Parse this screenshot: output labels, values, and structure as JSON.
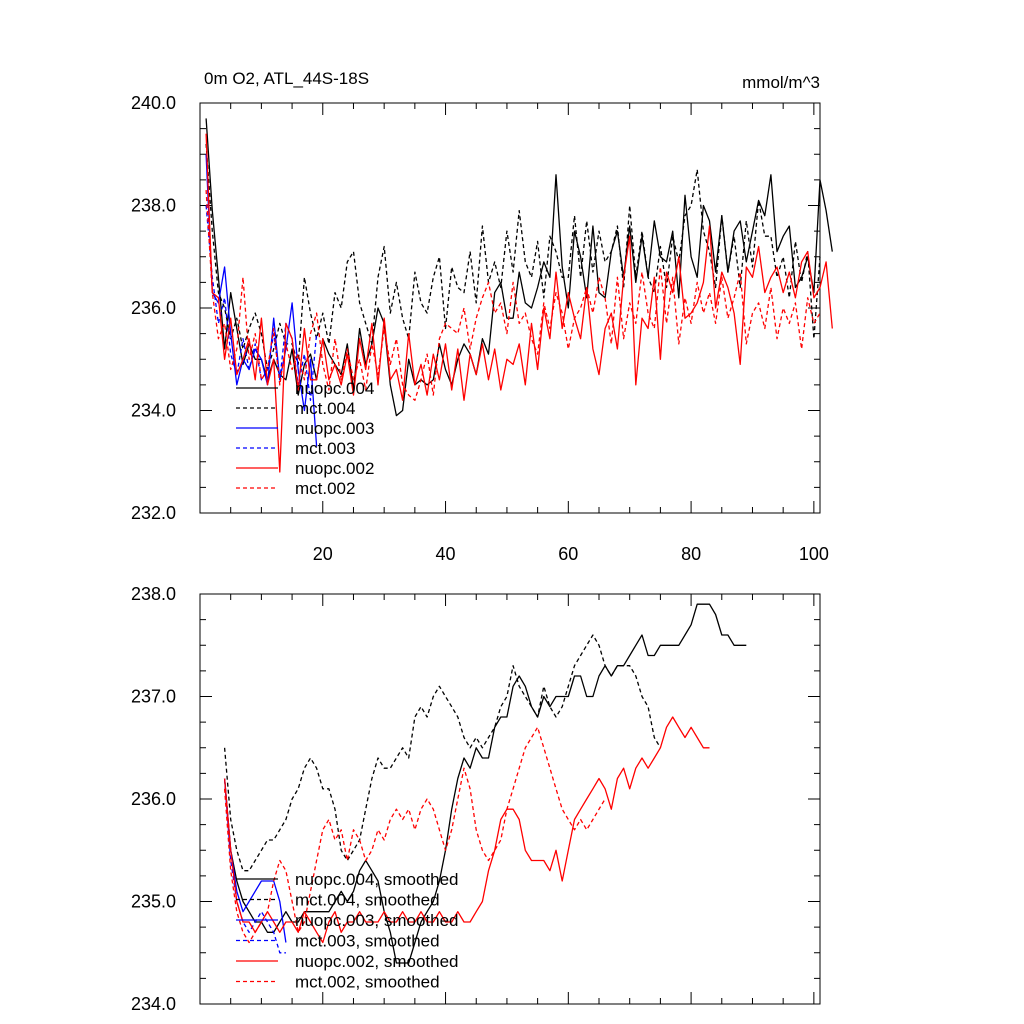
{
  "colors": {
    "black": "#000000",
    "blue": "#0000ff",
    "red": "#ff0000"
  },
  "chart_data": [
    {
      "type": "line",
      "title": "0m O2, ATL_44S-18S",
      "units": "mmol/m^3",
      "xlim": [
        0,
        101
      ],
      "ylim": [
        232,
        240
      ],
      "xticks": [
        20,
        40,
        60,
        80,
        100
      ],
      "xtick_labels": [
        "20",
        "40",
        "60",
        "80",
        "100"
      ],
      "yticks": [
        232,
        234,
        236,
        238,
        240
      ],
      "ytick_labels": [
        "232.0",
        "234.0",
        "236.0",
        "238.0",
        "240.0"
      ],
      "legend_position": "lower-left",
      "series": [
        {
          "name": "nuopc.004",
          "color": "black",
          "dash": "solid",
          "x_start": 1,
          "values": [
            239.7,
            237.9,
            236.6,
            235.2,
            236.3,
            235.6,
            234.9,
            235.3,
            235.0,
            235.0,
            234.6,
            235.0,
            234.7,
            234.6,
            235.2,
            234.3,
            234.9,
            235.1,
            234.6,
            235.4,
            235.1,
            234.9,
            234.7,
            235.3,
            234.4,
            235.6,
            234.9,
            235.3,
            236.0,
            235.7,
            234.5,
            233.9,
            234.0,
            235.0,
            234.5,
            234.6,
            234.5,
            234.6,
            235.3,
            234.8,
            234.5,
            235.0,
            235.3,
            235.1,
            234.7,
            235.4,
            235.1,
            236.3,
            236.5,
            235.8,
            235.8,
            236.7,
            236.1,
            236.0,
            236.4,
            236.9,
            236.6,
            238.6,
            236.8,
            236.0,
            237.5,
            237.0,
            236.2,
            237.6,
            236.3,
            236.2,
            237.1,
            237.5,
            236.6,
            237.6,
            236.5,
            237.4,
            236.6,
            237.7,
            237.0,
            236.9,
            237.5,
            236.2,
            238.2,
            237.0,
            236.6,
            238.0,
            237.7,
            236.7,
            237.8,
            236.7,
            237.5,
            237.7,
            236.9,
            237.5,
            238.1,
            237.8,
            238.6,
            237.1,
            237.4,
            237.6,
            236.4,
            236.6,
            237.0,
            236.3,
            238.5,
            237.9,
            237.1
          ]
        },
        {
          "name": "mct.004",
          "color": "black",
          "dash": "dashed",
          "x_start": 1,
          "values": [
            239.2,
            237.5,
            236.3,
            236.0,
            235.4,
            235.8,
            235.2,
            235.6,
            235.9,
            235.5,
            234.8,
            235.2,
            235.7,
            235.3,
            235.3,
            234.9,
            236.6,
            235.9,
            235.4,
            235.9,
            235.3,
            236.3,
            236.0,
            236.9,
            237.1,
            236.1,
            235.7,
            235.3,
            236.6,
            237.2,
            235.9,
            236.5,
            235.8,
            235.4,
            236.7,
            236.1,
            235.9,
            236.6,
            237.0,
            235.6,
            236.8,
            236.4,
            236.3,
            237.1,
            236.1,
            237.6,
            236.5,
            236.9,
            236.4,
            237.5,
            236.7,
            237.9,
            236.9,
            236.6,
            237.3,
            236.2,
            237.4,
            237.1,
            236.6,
            236.6,
            237.8,
            236.6,
            237.7,
            236.7,
            237.5,
            236.9,
            237.1,
            237.6,
            236.4,
            238.0,
            236.6,
            237.5,
            236.6,
            236.3,
            237.2,
            236.4,
            237.4,
            236.9,
            237.8,
            238.0,
            238.7,
            237.5,
            237.1,
            236.4,
            237.8,
            236.7,
            237.4,
            236.4,
            237.7,
            236.8,
            238.1,
            237.4,
            237.4,
            236.6,
            237.0,
            236.2,
            237.3,
            236.5,
            237.1,
            235.4,
            237.0
          ]
        },
        {
          "name": "nuopc.003",
          "color": "blue",
          "dash": "solid",
          "x_start": 1,
          "values": [
            239.0,
            236.3,
            236.1,
            236.8,
            235.5,
            234.5,
            235.0,
            234.8,
            235.2,
            235.0,
            234.5,
            235.8,
            234.6,
            235.2,
            236.1,
            234.8,
            234.0,
            235.0,
            233.3
          ]
        },
        {
          "name": "mct.003",
          "color": "blue",
          "dash": "dashed",
          "x_start": 1,
          "values": [
            238.0,
            236.6,
            235.7,
            236.2,
            235.1,
            234.7,
            235.4,
            234.8,
            235.3,
            234.6,
            234.8,
            235.5,
            234.6,
            235.7,
            235.4,
            234.5,
            235.1,
            234.2,
            235.5
          ]
        },
        {
          "name": "nuopc.002",
          "color": "red",
          "dash": "solid",
          "x_start": 1,
          "values": [
            239.4,
            236.3,
            236.2,
            235.0,
            235.8,
            234.7,
            235.0,
            235.4,
            234.6,
            235.8,
            234.5,
            235.0,
            232.8,
            235.7,
            235.4,
            234.4,
            235.6,
            234.6,
            234.6,
            235.4,
            234.6,
            234.9,
            234.5,
            235.1,
            234.3,
            235.4,
            234.8,
            235.7,
            234.5,
            235.8,
            234.6,
            234.8,
            234.2,
            235.5,
            234.5,
            234.9,
            234.3,
            235.1,
            234.6,
            235.3,
            234.4,
            235.2,
            234.2,
            235.1,
            234.7,
            235.3,
            234.6,
            235.2,
            234.4,
            235.0,
            234.9,
            235.3,
            234.5,
            235.7,
            234.8,
            236.0,
            235.4,
            236.7,
            235.6,
            236.3,
            235.8,
            235.4,
            236.4,
            235.2,
            234.7,
            235.6,
            235.9,
            235.2,
            236.6,
            237.4,
            234.5,
            235.8,
            235.6,
            236.6,
            235.0,
            236.7,
            236.3,
            237.0,
            235.8,
            235.9,
            236.1,
            236.5,
            237.6,
            236.0,
            236.7,
            236.4,
            235.9,
            234.9,
            236.8,
            236.6,
            237.2,
            236.3,
            236.6,
            236.8,
            236.3,
            236.7,
            236.2,
            236.9,
            237.1,
            236.2,
            236.4,
            236.9,
            235.6
          ]
        },
        {
          "name": "mct.002",
          "color": "red",
          "dash": "dashed",
          "x_start": 1,
          "values": [
            238.3,
            236.3,
            235.4,
            235.7,
            234.8,
            235.2,
            236.6,
            235.0,
            235.5,
            234.6,
            234.8,
            235.6,
            234.5,
            235.3,
            234.8,
            235.1,
            234.6,
            235.5,
            235.9,
            234.9,
            234.4,
            235.4,
            234.6,
            235.2,
            234.6,
            235.0,
            234.4,
            235.3,
            234.7,
            235.6,
            234.9,
            235.4,
            234.5,
            234.3,
            234.2,
            234.6,
            235.1,
            234.3,
            235.4,
            235.7,
            235.6,
            235.5,
            236.0,
            235.2,
            235.8,
            236.2,
            236.5,
            235.9,
            236.1,
            235.5,
            236.5,
            235.7,
            235.9,
            235.4,
            235.1,
            236.1,
            235.6,
            236.3,
            235.9,
            235.2,
            235.8,
            236.0,
            236.4,
            235.9,
            236.6,
            236.2,
            235.3,
            236.6,
            235.4,
            236.1,
            235.7,
            236.7,
            235.9,
            235.6,
            236.8,
            235.7,
            236.6,
            235.3,
            236.2,
            235.7,
            236.5,
            235.9,
            236.3,
            235.7,
            236.6,
            235.8,
            236.2,
            236.7,
            235.3,
            235.9,
            236.1,
            235.6,
            236.4,
            235.4,
            236.0,
            235.7,
            236.1,
            235.2,
            236.2,
            235.7,
            235.9
          ]
        }
      ]
    },
    {
      "type": "line",
      "xlim": [
        0,
        101
      ],
      "ylim": [
        234,
        238
      ],
      "xticks": [
        20,
        40,
        60,
        80,
        100
      ],
      "yticks": [
        234,
        235,
        236,
        237,
        238
      ],
      "ytick_labels": [
        "234.0",
        "235.0",
        "236.0",
        "237.0",
        "238.0"
      ],
      "legend_position": "lower-left",
      "series": [
        {
          "name": "nuopc.004, smoothed",
          "color": "black",
          "dash": "solid",
          "x_start": 4,
          "values": [
            236.2,
            235.5,
            235.2,
            235.0,
            234.9,
            234.8,
            234.8,
            234.7,
            234.7,
            234.8,
            234.9,
            234.8,
            234.8,
            234.9,
            234.9,
            234.9,
            234.9,
            234.9,
            235.0,
            235.1,
            235.0,
            235.1,
            235.3,
            235.4,
            235.3,
            235.2,
            234.9,
            234.7,
            234.4,
            234.4,
            234.4,
            234.6,
            234.8,
            234.9,
            235.0,
            235.2,
            235.5,
            235.9,
            236.2,
            236.4,
            236.3,
            236.5,
            236.4,
            236.4,
            236.7,
            236.8,
            236.8,
            237.1,
            237.2,
            237.1,
            236.9,
            236.8,
            237.0,
            236.9,
            237.0,
            237.0,
            237.0,
            237.2,
            237.2,
            237.0,
            237.0,
            237.2,
            237.3,
            237.2,
            237.3,
            237.3,
            237.4,
            237.5,
            237.6,
            237.4,
            237.4,
            237.5,
            237.5,
            237.5,
            237.5,
            237.6,
            237.7,
            237.9,
            237.9,
            237.9,
            237.8,
            237.6,
            237.6,
            237.5,
            237.5,
            237.5
          ]
        },
        {
          "name": "mct.004, smoothed",
          "color": "black",
          "dash": "dashed",
          "x_start": 4,
          "values": [
            236.5,
            235.8,
            235.5,
            235.3,
            235.3,
            235.4,
            235.5,
            235.6,
            235.6,
            235.7,
            235.8,
            236.0,
            236.1,
            236.3,
            236.4,
            236.3,
            236.1,
            236.1,
            235.9,
            235.5,
            235.4,
            235.5,
            235.6,
            235.9,
            236.2,
            236.4,
            236.3,
            236.3,
            236.4,
            236.5,
            236.4,
            236.8,
            236.9,
            236.8,
            237.0,
            237.1,
            237.0,
            236.9,
            236.8,
            236.6,
            236.5,
            236.6,
            236.5,
            236.6,
            236.7,
            236.9,
            237.0,
            237.3,
            237.1,
            237.0,
            236.9,
            236.8,
            237.1,
            236.9,
            236.8,
            236.9,
            237.1,
            237.3,
            237.4,
            237.5,
            237.6,
            237.5,
            237.3,
            237.2,
            237.3,
            237.3,
            237.3,
            237.2,
            237.0,
            236.9,
            236.6,
            236.5
          ]
        },
        {
          "name": "nuopc.003, smoothed",
          "color": "blue",
          "dash": "solid",
          "x_start": 4,
          "values": [
            236.2,
            235.5,
            235.1,
            234.9,
            235.0,
            235.1,
            235.2,
            235.2,
            235.2,
            235.0,
            234.6
          ]
        },
        {
          "name": "mct.003, smoothed",
          "color": "blue",
          "dash": "dashed",
          "x_start": 4,
          "values": [
            236.2,
            235.4,
            235.0,
            234.8,
            234.7,
            234.8,
            234.9,
            234.8,
            234.7,
            234.5,
            234.5
          ]
        },
        {
          "name": "nuopc.002, smoothed",
          "color": "red",
          "dash": "solid",
          "x_start": 4,
          "values": [
            236.2,
            235.5,
            235.0,
            234.8,
            234.8,
            234.7,
            234.8,
            234.9,
            234.8,
            234.7,
            234.8,
            234.8,
            234.7,
            234.9,
            234.8,
            234.7,
            234.6,
            234.8,
            234.9,
            234.7,
            234.8,
            234.8,
            234.9,
            234.8,
            234.8,
            234.8,
            234.9,
            234.8,
            234.8,
            234.9,
            234.8,
            234.8,
            234.9,
            234.8,
            234.8,
            234.9,
            234.8,
            234.8,
            234.9,
            234.8,
            234.8,
            234.9,
            235.0,
            235.3,
            235.5,
            235.8,
            235.9,
            235.9,
            235.8,
            235.5,
            235.4,
            235.4,
            235.4,
            235.3,
            235.5,
            235.2,
            235.5,
            235.8,
            235.9,
            236.0,
            236.1,
            236.2,
            236.1,
            235.9,
            236.2,
            236.3,
            236.1,
            236.3,
            236.4,
            236.3,
            236.4,
            236.5,
            236.7,
            236.8,
            236.7,
            236.6,
            236.7,
            236.6,
            236.5,
            236.5
          ]
        },
        {
          "name": "mct.002, smoothed",
          "color": "red",
          "dash": "dashed",
          "x_start": 4,
          "values": [
            236.1,
            235.3,
            234.9,
            234.7,
            234.6,
            234.7,
            234.8,
            234.9,
            235.2,
            235.4,
            235.3,
            235.0,
            234.7,
            234.8,
            235.1,
            235.4,
            235.7,
            235.8,
            235.6,
            235.7,
            235.4,
            235.7,
            235.6,
            235.4,
            235.5,
            235.7,
            235.6,
            235.8,
            235.9,
            235.8,
            235.9,
            235.7,
            235.9,
            236.0,
            235.9,
            235.7,
            235.5,
            235.7,
            236.0,
            236.3,
            236.1,
            235.7,
            235.5,
            235.4,
            235.5,
            235.6,
            235.9,
            236.1,
            236.3,
            236.5,
            236.6,
            236.7,
            236.5,
            236.3,
            236.1,
            235.9,
            235.8,
            235.7,
            235.8,
            235.7,
            235.8,
            235.9,
            236.0
          ]
        }
      ]
    }
  ]
}
